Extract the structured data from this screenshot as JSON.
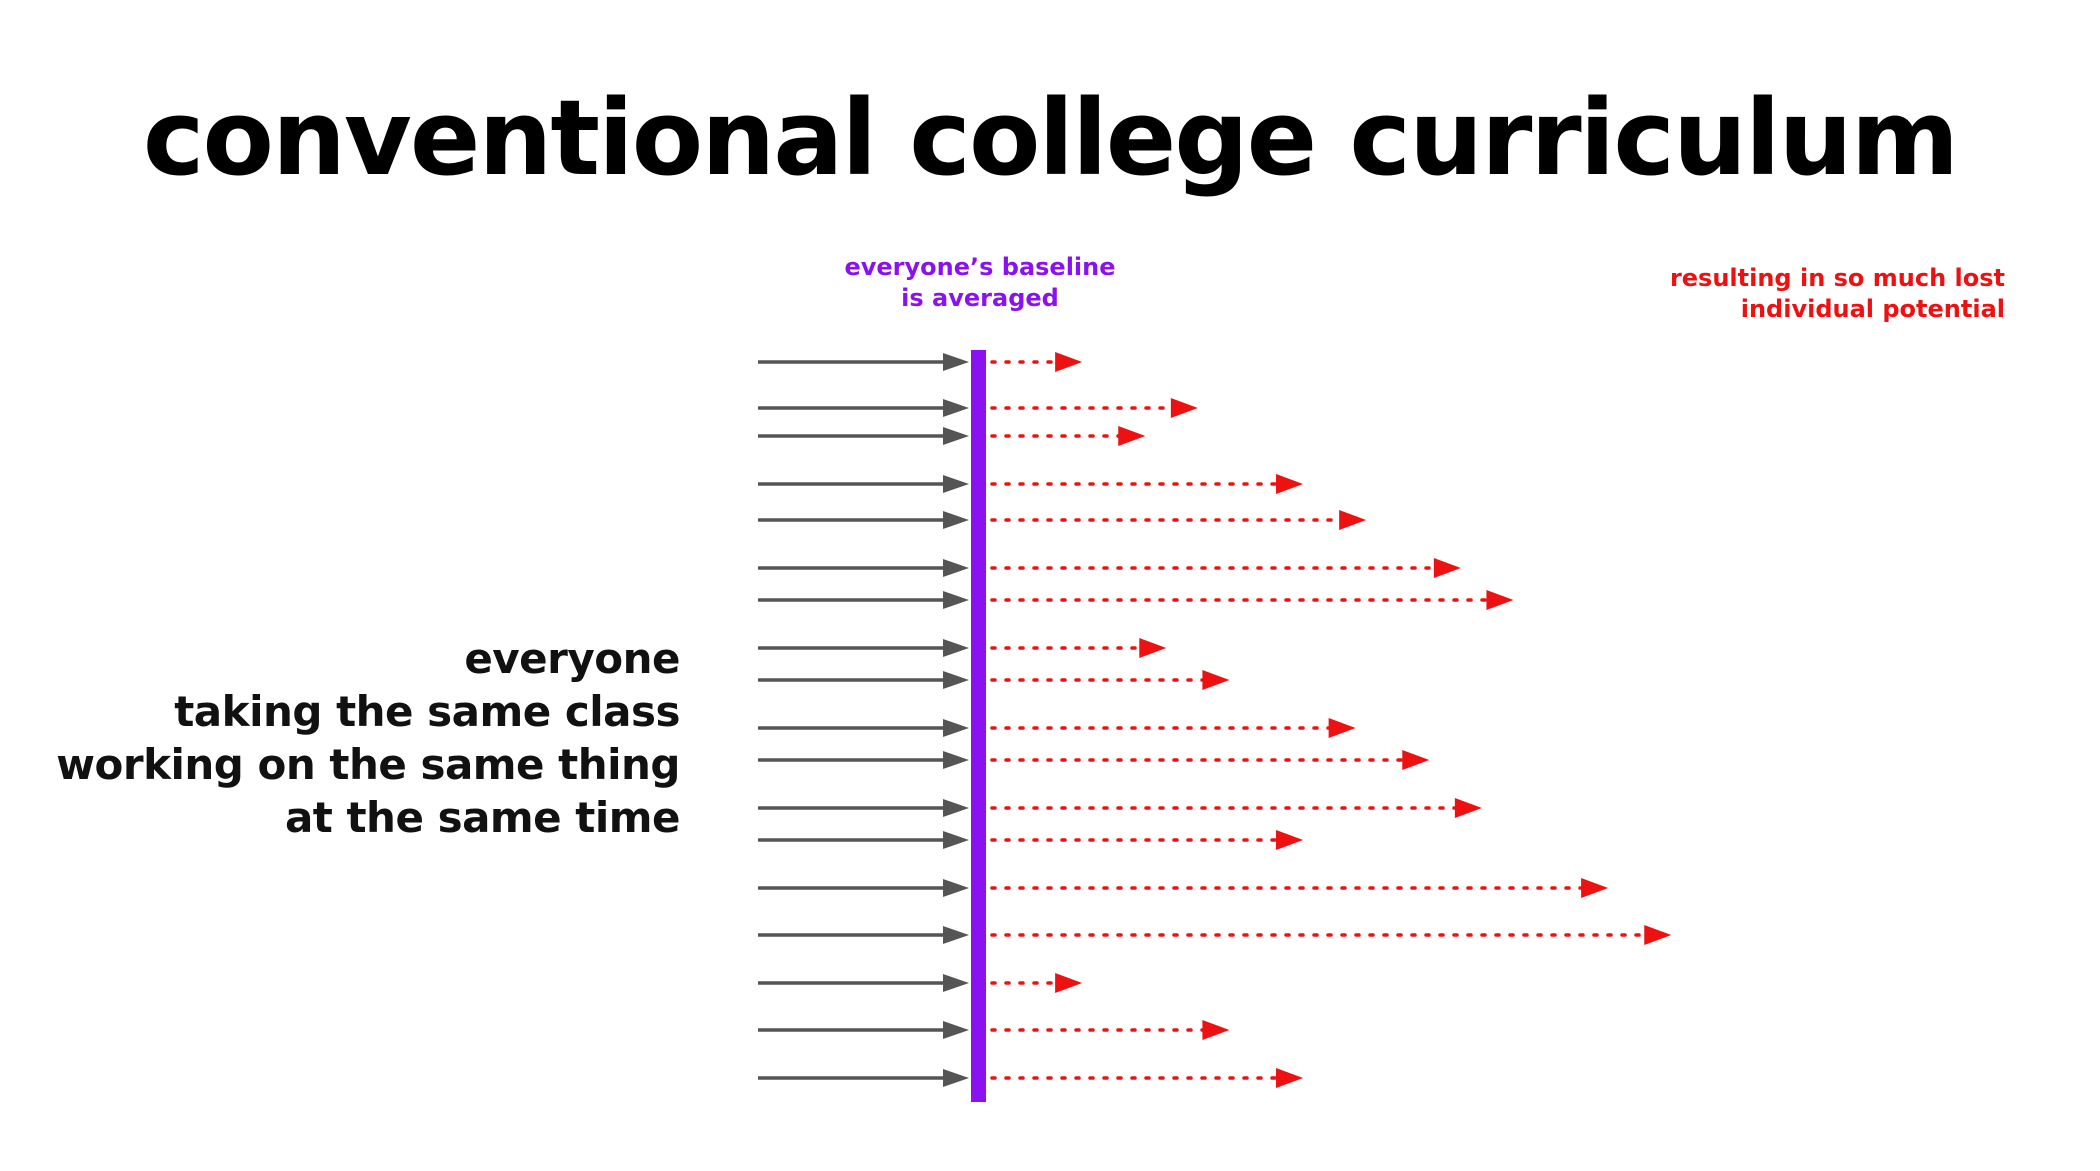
{
  "title": "conventional college curriculum",
  "baseline_label": {
    "lines": [
      "everyone’s baseline",
      "is averaged"
    ]
  },
  "lost_label": {
    "lines": [
      "resulting in so much lost",
      "individual potential"
    ]
  },
  "side_text": {
    "lines": [
      "everyone",
      "taking the same class",
      "working on the same thing",
      "at the same time"
    ]
  },
  "colors": {
    "title": "#000000",
    "baseline": "#8b12f0",
    "lost": "#ee1111",
    "input_arrow": "#555555",
    "side_text": "#111111"
  },
  "rows": [
    {
      "potential": 0.06
    },
    {
      "potential": 0.17
    },
    {
      "potential": 0.12
    },
    {
      "potential": 0.27
    },
    {
      "potential": 0.33
    },
    {
      "potential": 0.42
    },
    {
      "potential": 0.47
    },
    {
      "potential": 0.14
    },
    {
      "potential": 0.2
    },
    {
      "potential": 0.32
    },
    {
      "potential": 0.39
    },
    {
      "potential": 0.44
    },
    {
      "potential": 0.27
    },
    {
      "potential": 0.56
    },
    {
      "potential": 0.62
    },
    {
      "potential": 0.06
    },
    {
      "potential": 0.2
    },
    {
      "potential": 0.27
    }
  ]
}
